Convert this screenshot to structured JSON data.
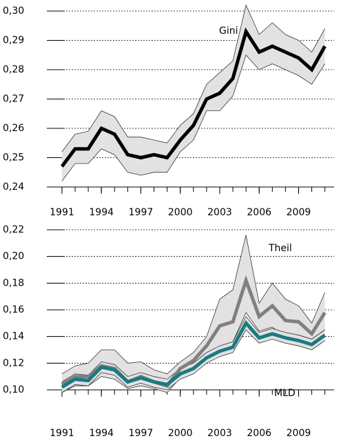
{
  "chart_data": [
    {
      "type": "line",
      "x": [
        1991,
        1992,
        1993,
        1994,
        1995,
        1996,
        1997,
        1998,
        1999,
        2000,
        2001,
        2002,
        2003,
        2004,
        2005,
        2006,
        2007,
        2008,
        2009,
        2010,
        2011
      ],
      "xlim": [
        1989.85,
        2011.7
      ],
      "xticks": [
        1991,
        1994,
        1997,
        2000,
        2003,
        2006,
        2009
      ],
      "ylim": [
        0.24,
        0.3
      ],
      "yticks": [
        {
          "value": 0.24,
          "label": "0,24"
        },
        {
          "value": 0.25,
          "label": "0,25"
        },
        {
          "value": 0.26,
          "label": "0,26"
        },
        {
          "value": 0.27,
          "label": "0,27"
        },
        {
          "value": 0.28,
          "label": "0,28"
        },
        {
          "value": 0.29,
          "label": "0,29"
        },
        {
          "value": 0.3,
          "label": "0,30"
        }
      ],
      "grid": true,
      "band_color": "#e2e2e2",
      "series": [
        {
          "name": "Gini",
          "color": "#000000",
          "values": [
            0.247,
            0.253,
            0.253,
            0.26,
            0.258,
            0.251,
            0.25,
            0.251,
            0.25,
            0.256,
            0.261,
            0.27,
            0.272,
            0.277,
            0.293,
            0.286,
            0.288,
            0.286,
            0.284,
            0.28,
            0.288
          ],
          "upper": [
            0.252,
            0.258,
            0.259,
            0.266,
            0.264,
            0.257,
            0.257,
            0.256,
            0.255,
            0.261,
            0.265,
            0.275,
            0.279,
            0.283,
            0.302,
            0.292,
            0.296,
            0.292,
            0.29,
            0.286,
            0.294
          ],
          "lower": [
            0.242,
            0.248,
            0.248,
            0.253,
            0.251,
            0.245,
            0.244,
            0.245,
            0.245,
            0.252,
            0.256,
            0.266,
            0.266,
            0.271,
            0.285,
            0.28,
            0.282,
            0.28,
            0.278,
            0.275,
            0.282
          ]
        }
      ]
    },
    {
      "type": "line",
      "x": [
        1991,
        1992,
        1993,
        1994,
        1995,
        1996,
        1997,
        1998,
        1999,
        2000,
        2001,
        2002,
        2003,
        2004,
        2005,
        2006,
        2007,
        2008,
        2009,
        2010,
        2011
      ],
      "xlim": [
        1989.85,
        2011.7
      ],
      "xticks": [
        1991,
        1994,
        1997,
        2000,
        2003,
        2006,
        2009
      ],
      "ylim": [
        0.1,
        0.22
      ],
      "yticks": [
        {
          "value": 0.1,
          "label": "0,10"
        },
        {
          "value": 0.12,
          "label": "0,12"
        },
        {
          "value": 0.14,
          "label": "0,14"
        },
        {
          "value": 0.16,
          "label": "0,16"
        },
        {
          "value": 0.18,
          "label": "0,18"
        },
        {
          "value": 0.2,
          "label": "0,20"
        },
        {
          "value": 0.22,
          "label": "0,22"
        }
      ],
      "grid": true,
      "band_color": "#e2e2e2",
      "series": [
        {
          "name": "Theil",
          "color": "#808080",
          "values": [
            0.104,
            0.11,
            0.11,
            0.118,
            0.116,
            0.106,
            0.11,
            0.106,
            0.103,
            0.116,
            0.122,
            0.133,
            0.148,
            0.151,
            0.182,
            0.155,
            0.163,
            0.152,
            0.151,
            0.142,
            0.158
          ],
          "upper": [
            0.112,
            0.118,
            0.12,
            0.13,
            0.13,
            0.12,
            0.121,
            0.115,
            0.112,
            0.121,
            0.128,
            0.14,
            0.168,
            0.175,
            0.216,
            0.165,
            0.18,
            0.168,
            0.163,
            0.15,
            0.173
          ],
          "lower": [
            0.098,
            0.103,
            0.103,
            0.11,
            0.108,
            0.101,
            0.103,
            0.101,
            0.098,
            0.109,
            0.113,
            0.124,
            0.132,
            0.136,
            0.158,
            0.144,
            0.147,
            0.14,
            0.141,
            0.138,
            0.145
          ]
        },
        {
          "name": "MLD",
          "color": "#1a7a80",
          "values": [
            0.102,
            0.108,
            0.107,
            0.117,
            0.115,
            0.106,
            0.109,
            0.106,
            0.104,
            0.112,
            0.116,
            0.124,
            0.129,
            0.132,
            0.15,
            0.139,
            0.142,
            0.139,
            0.137,
            0.134,
            0.141
          ],
          "upper": [
            0.106,
            0.112,
            0.111,
            0.121,
            0.119,
            0.11,
            0.113,
            0.11,
            0.108,
            0.116,
            0.12,
            0.128,
            0.133,
            0.136,
            0.155,
            0.143,
            0.146,
            0.143,
            0.141,
            0.138,
            0.145
          ],
          "lower": [
            0.098,
            0.104,
            0.103,
            0.113,
            0.111,
            0.102,
            0.105,
            0.102,
            0.1,
            0.108,
            0.112,
            0.12,
            0.125,
            0.128,
            0.145,
            0.135,
            0.138,
            0.135,
            0.133,
            0.13,
            0.137
          ]
        }
      ]
    }
  ]
}
